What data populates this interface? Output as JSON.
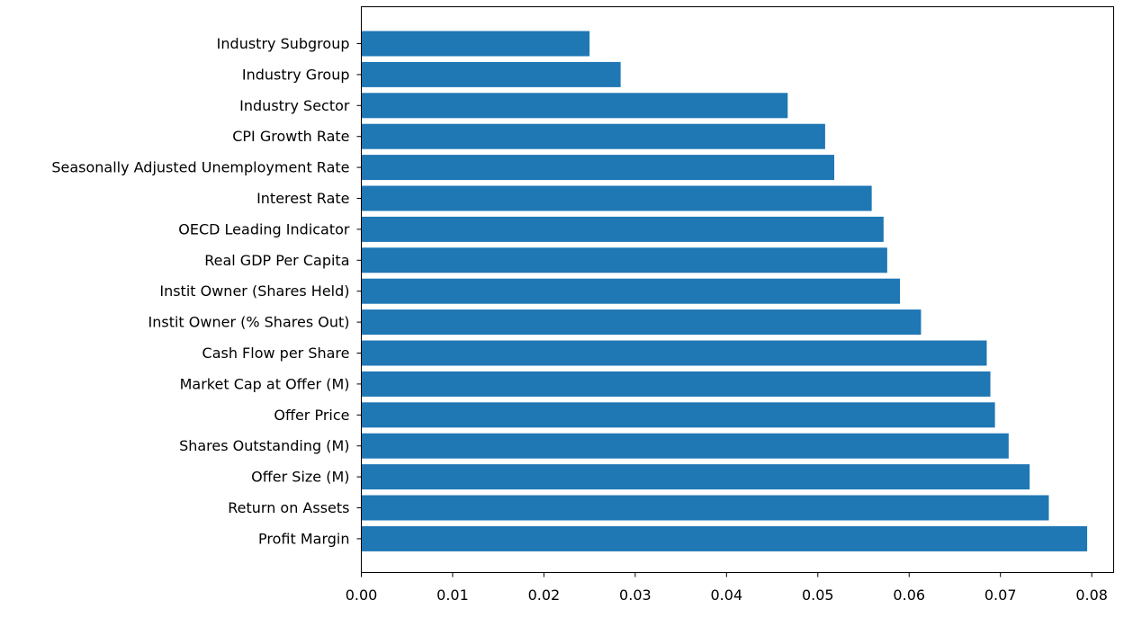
{
  "chart_data": {
    "type": "bar",
    "orientation": "horizontal",
    "title": "",
    "xlabel": "",
    "ylabel": "",
    "categories": [
      "Industry Subgroup",
      "Industry Group",
      "Industry Sector",
      "CPI Growth Rate",
      "Seasonally Adjusted Unemployment Rate",
      "Interest Rate",
      "OECD Leading Indicator",
      "Real GDP Per Capita",
      "Instit Owner (Shares Held)",
      "Instit Owner (% Shares Out)",
      "Cash Flow per Share",
      "Market Cap at Offer (M)",
      "Offer Price",
      "Shares Outstanding (M)",
      "Offer Size (M)",
      "Return on Assets",
      "Profit Margin"
    ],
    "values": [
      0.025,
      0.0284,
      0.0467,
      0.0508,
      0.0518,
      0.0559,
      0.0572,
      0.0576,
      0.059,
      0.0613,
      0.0685,
      0.0689,
      0.0694,
      0.0709,
      0.0732,
      0.0753,
      0.0795
    ],
    "xlim": [
      0,
      0.0824
    ],
    "xticks": [
      0.0,
      0.01,
      0.02,
      0.03,
      0.04,
      0.05,
      0.06,
      0.07,
      0.08
    ],
    "xtick_labels": [
      "0.00",
      "0.01",
      "0.02",
      "0.03",
      "0.04",
      "0.05",
      "0.06",
      "0.07",
      "0.08"
    ],
    "bar_color": "#1f77b4",
    "grid": false,
    "legend": "none"
  }
}
